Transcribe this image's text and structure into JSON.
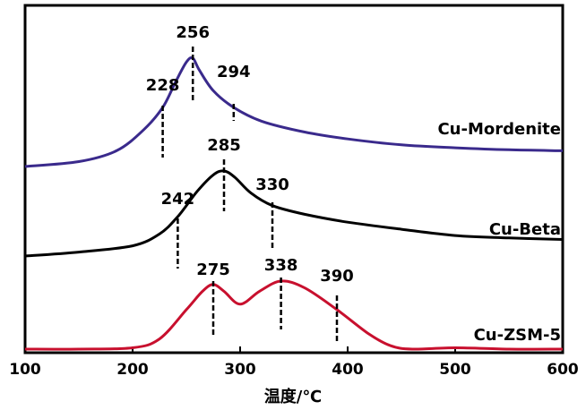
{
  "chart_data": {
    "type": "line",
    "title": "",
    "xlabel": "温度/℃",
    "ylabel": "",
    "xlim": [
      100,
      600
    ],
    "x_ticks": [
      100,
      200,
      300,
      400,
      500,
      600
    ],
    "y_ticks_shown": false,
    "legend": "none; series labelled inline at right end of each curve",
    "grid": false,
    "series": [
      {
        "name": "Cu-Mordenite",
        "color": "#3a2a8c",
        "x": [
          100,
          150,
          185,
          210,
          228,
          240,
          250,
          256,
          262,
          275,
          294,
          320,
          360,
          400,
          450,
          500,
          550,
          600
        ],
        "y": [
          0.0,
          0.05,
          0.16,
          0.37,
          0.6,
          0.86,
          1.06,
          1.1,
          0.98,
          0.77,
          0.6,
          0.46,
          0.35,
          0.28,
          0.22,
          0.19,
          0.17,
          0.16
        ],
        "annotations": [
          {
            "label": "228",
            "x": 228
          },
          {
            "label": "256",
            "x": 256
          },
          {
            "label": "294",
            "x": 294
          }
        ]
      },
      {
        "name": "Cu-Beta",
        "color": "#000000",
        "x": [
          100,
          150,
          200,
          225,
          242,
          260,
          275,
          285,
          295,
          310,
          330,
          360,
          400,
          450,
          500,
          550,
          600
        ],
        "y": [
          0.0,
          0.05,
          0.13,
          0.28,
          0.5,
          0.82,
          1.03,
          1.08,
          1.0,
          0.8,
          0.64,
          0.53,
          0.43,
          0.34,
          0.26,
          0.23,
          0.21
        ],
        "annotations": [
          {
            "label": "242",
            "x": 242
          },
          {
            "label": "285",
            "x": 285
          },
          {
            "label": "330",
            "x": 330
          }
        ]
      },
      {
        "name": "Cu-ZSM-5",
        "color": "#c8102e",
        "x": [
          100,
          150,
          200,
          225,
          250,
          265,
          275,
          285,
          300,
          318,
          338,
          360,
          390,
          420,
          440,
          460,
          500,
          550,
          600
        ],
        "y": [
          0.0,
          0.0,
          0.02,
          0.15,
          0.58,
          0.85,
          0.95,
          0.85,
          0.66,
          0.85,
          1.0,
          0.9,
          0.58,
          0.22,
          0.05,
          0.0,
          0.02,
          0.0,
          0.0
        ],
        "annotations": [
          {
            "label": "275",
            "x": 275
          },
          {
            "label": "338",
            "x": 338
          },
          {
            "label": "390",
            "x": 390
          }
        ]
      }
    ]
  }
}
